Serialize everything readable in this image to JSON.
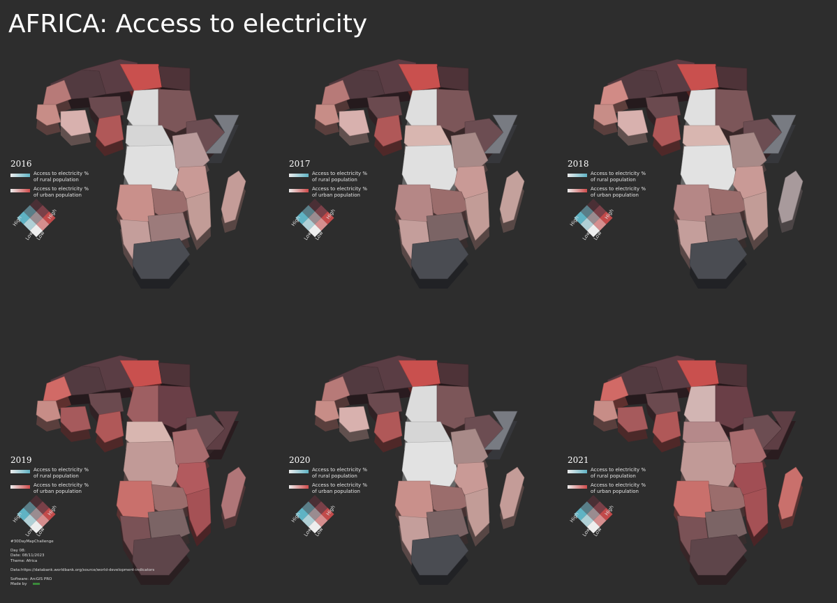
{
  "title": "AFRICA: Access to electricity",
  "legend": {
    "rural_label_1": "Access to electricity %",
    "rural_label_2": "of rural population",
    "urban_label_1": "Access to electricity %",
    "urban_label_2": "of urban population",
    "high": "High",
    "low": "Low",
    "rural_color": "#5fb3c4",
    "urban_color": "#cf4a4a",
    "low_color": "#eeeeee",
    "high_both_color": "#4a2f35"
  },
  "panels": [
    {
      "year": "2016"
    },
    {
      "year": "2017"
    },
    {
      "year": "2018"
    },
    {
      "year": "2019"
    },
    {
      "year": "2020"
    },
    {
      "year": "2021"
    }
  ],
  "footer": {
    "challenge": "#30DayMapChallenge",
    "day": "Day 08:",
    "date": "Date: 08/11/2023",
    "theme": "Theme: Africa",
    "data": "Data:https://databank.worldbank.org/source/world-development-indicators",
    "software": "Software: ArcGIS PRO",
    "made_by": "Made by"
  }
}
